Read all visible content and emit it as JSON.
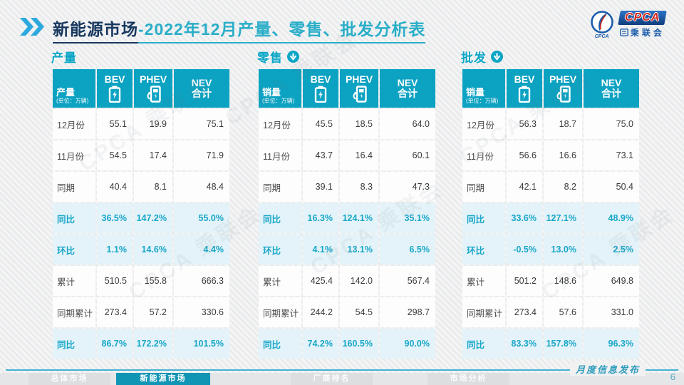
{
  "colors": {
    "accent_teal": "#0CA2C2",
    "highlight_row_bg": "#E4F3F9",
    "highlight_text": "#18A7C9",
    "title_navy": "#17375E",
    "title_teal": "#2AAEC8",
    "active_tab": "#1195B5"
  },
  "header": {
    "title_primary": "新能源市场",
    "title_secondary": "-2022年12月产量、零售、批发分析表"
  },
  "logo": {
    "cpca": "CPCA",
    "circle_caption": "CPCA",
    "association": "乘联会"
  },
  "watermark": "CPCA 乘联会",
  "tables": [
    {
      "id": "production",
      "section_title": "产量",
      "has_down_arrow": false,
      "corner_label": "产量",
      "corner_unit": "(单位：万辆)",
      "columns": [
        {
          "label": "BEV",
          "icon": "battery-icon"
        },
        {
          "label": "PHEV",
          "icon": "charger-icon"
        },
        {
          "label": "NEV",
          "sub": "合计"
        }
      ],
      "rows": [
        {
          "label": "12月份",
          "values": [
            "55.1",
            "19.9",
            "75.1"
          ],
          "highlight": false
        },
        {
          "label": "11月份",
          "values": [
            "54.5",
            "17.4",
            "71.9"
          ],
          "highlight": false
        },
        {
          "label": "同期",
          "values": [
            "40.4",
            "8.1",
            "48.4"
          ],
          "highlight": false
        },
        {
          "label": "同比",
          "values": [
            "36.5%",
            "147.2%",
            "55.0%"
          ],
          "highlight": true
        },
        {
          "label": "环比",
          "values": [
            "1.1%",
            "14.6%",
            "4.4%"
          ],
          "highlight": true
        },
        {
          "label": "累计",
          "values": [
            "510.5",
            "155.8",
            "666.3"
          ],
          "highlight": false
        },
        {
          "label": "同期累计",
          "values": [
            "273.4",
            "57.2",
            "330.6"
          ],
          "highlight": false
        },
        {
          "label": "同比",
          "values": [
            "86.7%",
            "172.2%",
            "101.5%"
          ],
          "highlight": true
        }
      ]
    },
    {
      "id": "retail",
      "section_title": "零售",
      "has_down_arrow": true,
      "corner_label": "销量",
      "corner_unit": "(单位：万辆)",
      "columns": [
        {
          "label": "BEV",
          "icon": "battery-icon"
        },
        {
          "label": "PHEV",
          "icon": "charger-icon"
        },
        {
          "label": "NEV",
          "sub": "合计"
        }
      ],
      "rows": [
        {
          "label": "12月份",
          "values": [
            "45.5",
            "18.5",
            "64.0"
          ],
          "highlight": false
        },
        {
          "label": "11月份",
          "values": [
            "43.7",
            "16.4",
            "60.1"
          ],
          "highlight": false
        },
        {
          "label": "同期",
          "values": [
            "39.1",
            "8.3",
            "47.3"
          ],
          "highlight": false
        },
        {
          "label": "同比",
          "values": [
            "16.3%",
            "124.1%",
            "35.1%"
          ],
          "highlight": true
        },
        {
          "label": "环比",
          "values": [
            "4.1%",
            "13.1%",
            "6.5%"
          ],
          "highlight": true
        },
        {
          "label": "累计",
          "values": [
            "425.4",
            "142.0",
            "567.4"
          ],
          "highlight": false
        },
        {
          "label": "同期累计",
          "values": [
            "244.2",
            "54.5",
            "298.7"
          ],
          "highlight": false
        },
        {
          "label": "同比",
          "values": [
            "74.2%",
            "160.5%",
            "90.0%"
          ],
          "highlight": true
        }
      ]
    },
    {
      "id": "wholesale",
      "section_title": "批发",
      "has_down_arrow": true,
      "corner_label": "销量",
      "corner_unit": "(单位：万辆)",
      "columns": [
        {
          "label": "BEV",
          "icon": "battery-icon"
        },
        {
          "label": "PHEV",
          "icon": "charger-icon"
        },
        {
          "label": "NEV",
          "sub": "合计"
        }
      ],
      "rows": [
        {
          "label": "12月份",
          "values": [
            "56.3",
            "18.7",
            "75.0"
          ],
          "highlight": false
        },
        {
          "label": "11月份",
          "values": [
            "56.6",
            "16.6",
            "73.1"
          ],
          "highlight": false
        },
        {
          "label": "同期",
          "values": [
            "42.1",
            "8.2",
            "50.4"
          ],
          "highlight": false
        },
        {
          "label": "同比",
          "values": [
            "33.6%",
            "127.1%",
            "48.9%"
          ],
          "highlight": true
        },
        {
          "label": "环比",
          "values": [
            "-0.5%",
            "13.0%",
            "2.5%"
          ],
          "highlight": true
        },
        {
          "label": "累计",
          "values": [
            "501.2",
            "148.6",
            "649.8"
          ],
          "highlight": false
        },
        {
          "label": "同期累计",
          "values": [
            "273.4",
            "57.6",
            "331.0"
          ],
          "highlight": false
        },
        {
          "label": "同比",
          "values": [
            "83.3%",
            "157.8%",
            "96.3%"
          ],
          "highlight": true
        }
      ]
    }
  ],
  "footer": {
    "publish_label": "月度信息发布",
    "page_number": "6",
    "tabs": [
      {
        "key": "overall-market",
        "label": "总体市场",
        "active": false
      },
      {
        "key": "nev-market",
        "label": "新能源市场",
        "active": true
      },
      {
        "key": "oem-ranking",
        "label": "厂商排名",
        "active": false
      },
      {
        "key": "market-analysis",
        "label": "市场分析",
        "active": false
      }
    ]
  }
}
